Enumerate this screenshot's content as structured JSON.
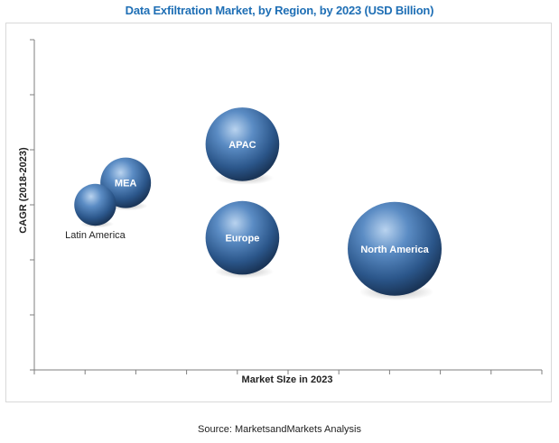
{
  "chart_data": {
    "type": "bubble",
    "title": "Data Exfiltration Market, by Region, by 2023 (USD Billion)",
    "xlabel": "Market SIze in 2023",
    "ylabel": "CAGR (2018-2023)",
    "grid": false,
    "x_ticks_count": 10,
    "y_ticks_count": 6,
    "xlim": [
      0,
      10
    ],
    "ylim": [
      0,
      6
    ],
    "points": [
      {
        "label": "APAC",
        "x": 4.1,
        "y": 4.1,
        "size": 1.15,
        "label_position": "center"
      },
      {
        "label": "MEA",
        "x": 1.8,
        "y": 3.4,
        "size": 0.75,
        "label_position": "center"
      },
      {
        "label": "Latin America",
        "x": 1.2,
        "y": 3.0,
        "size": 0.6,
        "label_position": "below"
      },
      {
        "label": "Europe",
        "x": 4.1,
        "y": 2.4,
        "size": 1.15,
        "label_position": "center"
      },
      {
        "label": "North America",
        "x": 7.1,
        "y": 2.2,
        "size": 1.5,
        "label_position": "center"
      }
    ],
    "bubble_color": "#2f5f96"
  },
  "source": "Source: MarketsandMarkets Analysis"
}
